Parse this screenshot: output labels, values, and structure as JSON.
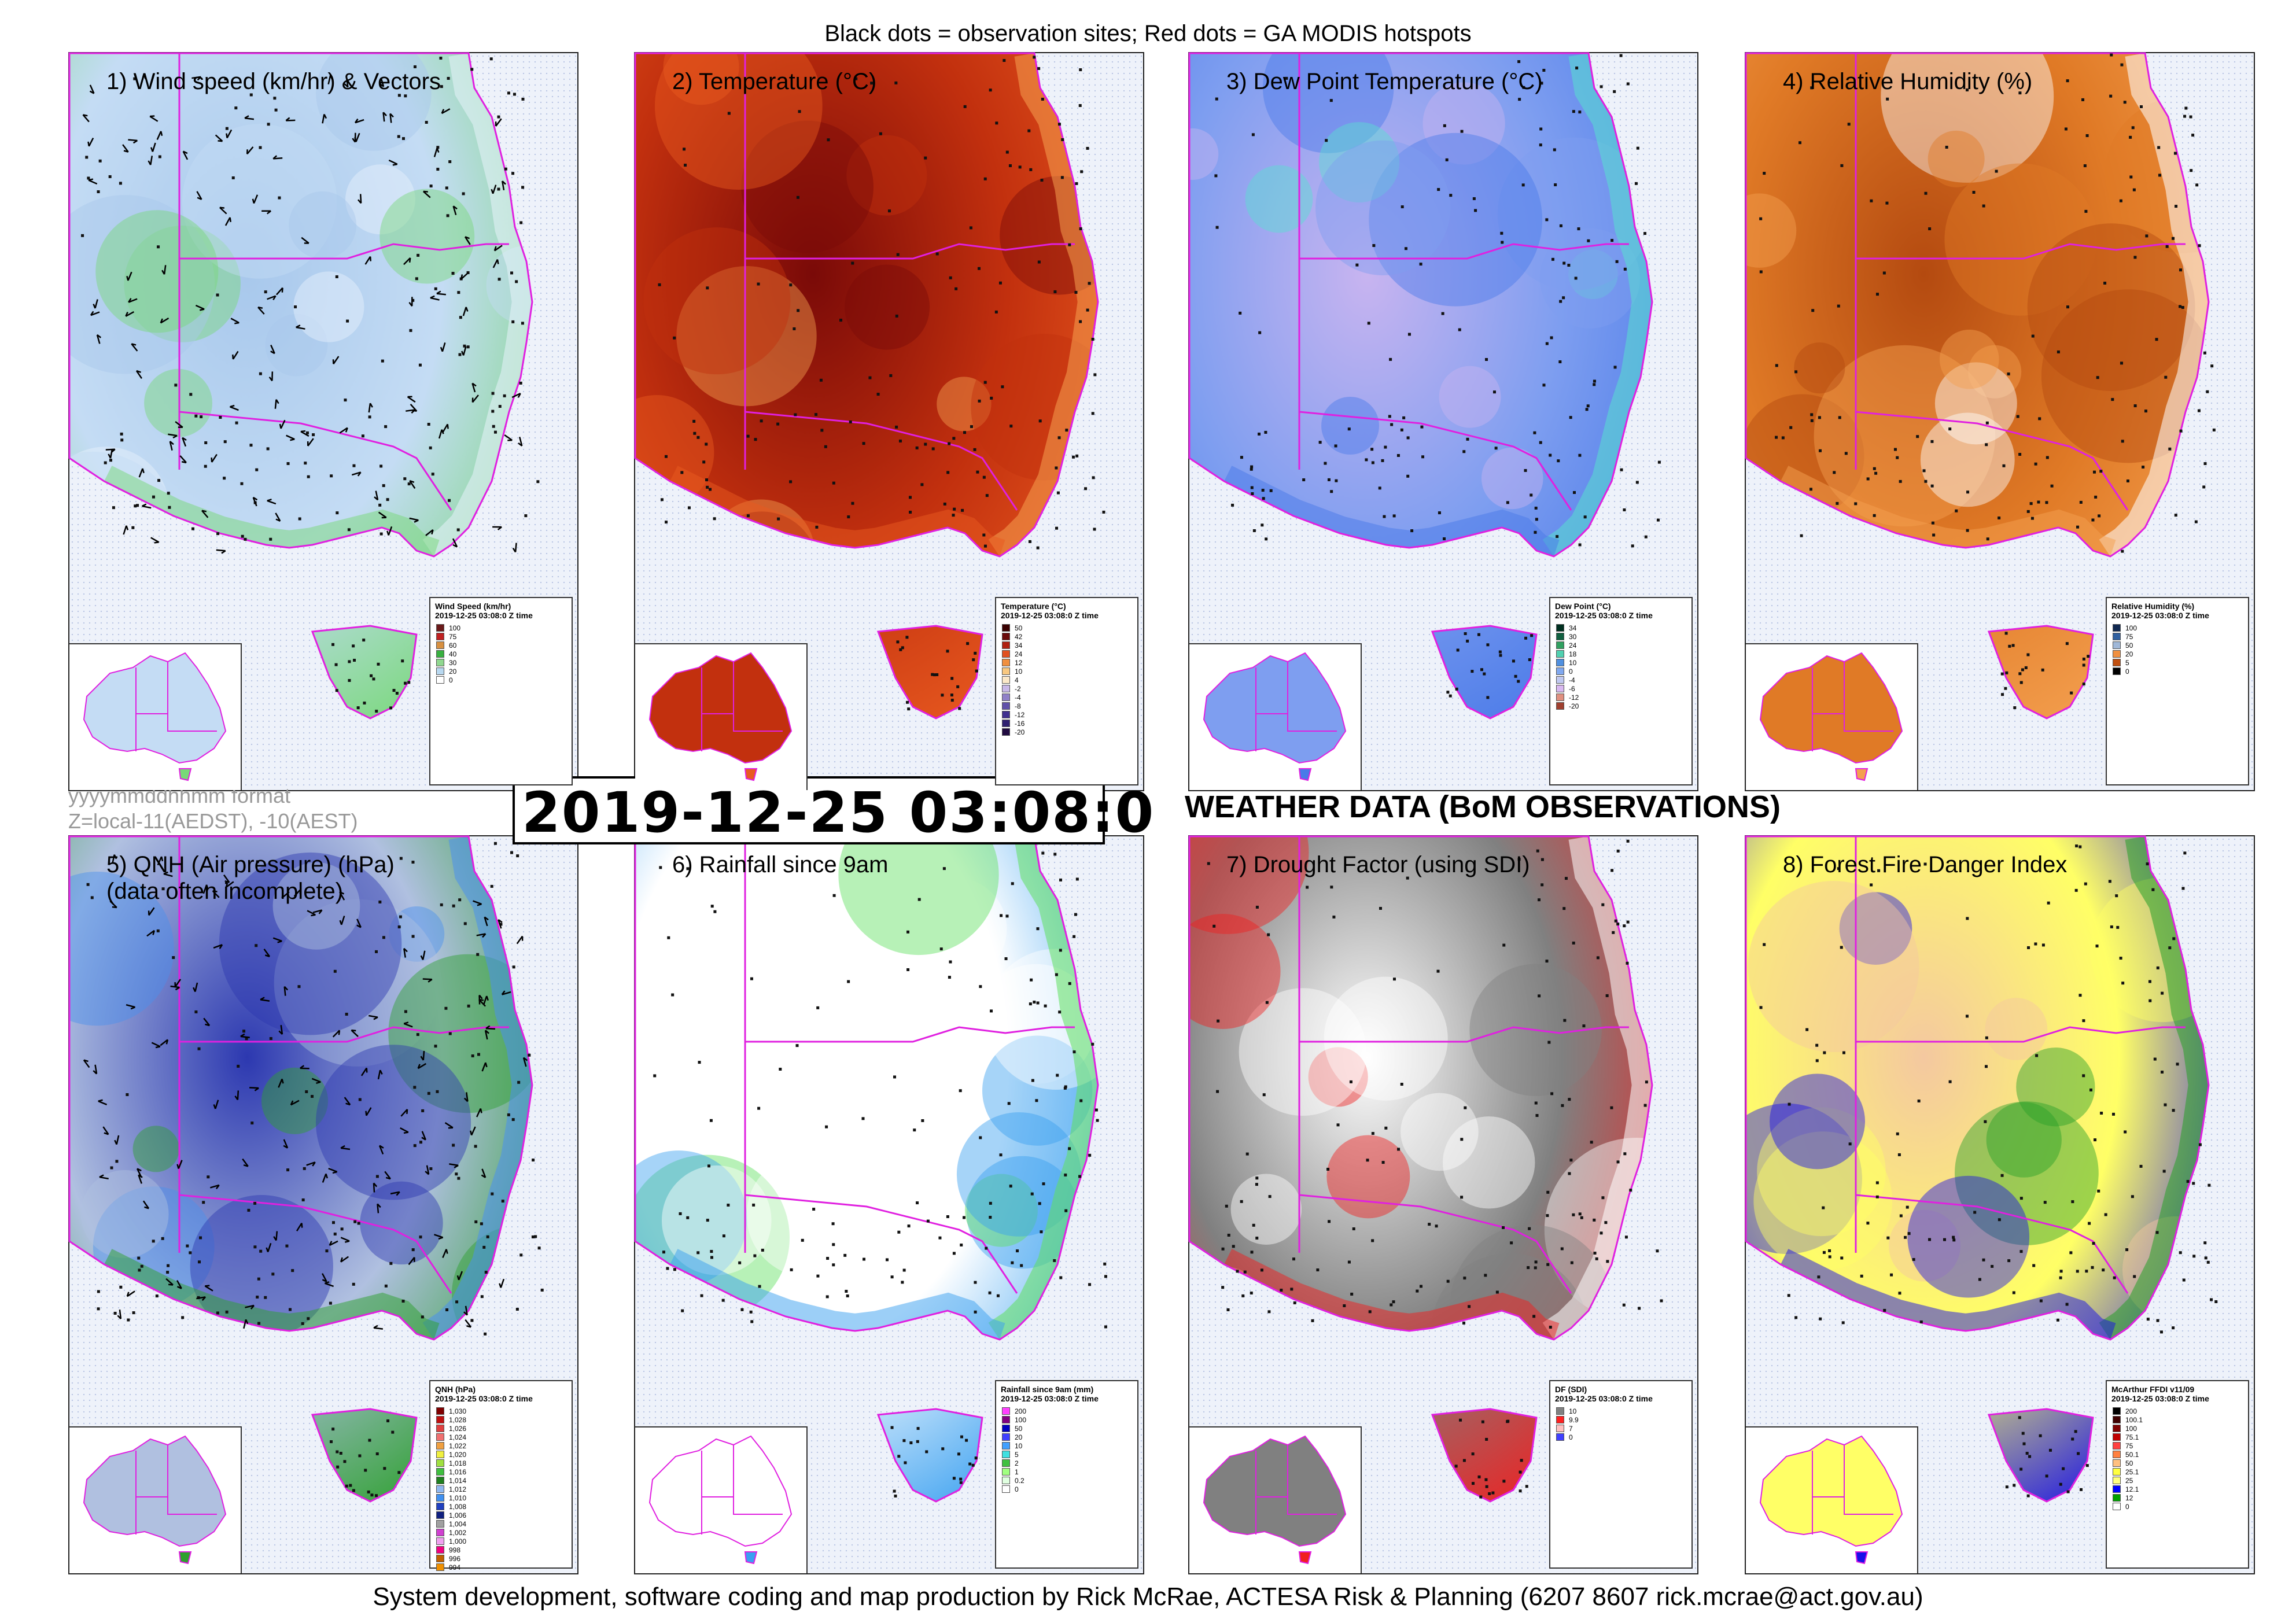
{
  "header": {
    "text": "Black dots = observation sites; Red dots = GA MODIS hotspots"
  },
  "footer": {
    "text": "System development, software coding and map production by Rick McRae, ACTESA Risk & Planning (6207 8607 rick.mcrae@act.gov.au)"
  },
  "timestamp": {
    "value": "2019-12-25 03:08:0",
    "format_line1": "yyyymmddhhmm format",
    "format_line2": "Z=local-11(AEDST), -10(AEST)"
  },
  "section_title": "WEATHER DATA (BoM OBSERVATIONS)",
  "panels": [
    {
      "title": "1) Wind speed (km/hr) & Vectors",
      "legend_title": "Wind Speed (km/hr)",
      "legend_date": "2019-12-25 03:08:0 Z time",
      "legend": [
        {
          "label": "100",
          "color": "#6a1a1a"
        },
        {
          "label": "75",
          "color": "#c02020"
        },
        {
          "label": "60",
          "color": "#d89040"
        },
        {
          "label": "40",
          "color": "#38b040"
        },
        {
          "label": "30",
          "color": "#90d890"
        },
        {
          "label": "20",
          "color": "#b8d8f0"
        },
        {
          "label": "0",
          "color": "#ffffff"
        }
      ],
      "colors": {
        "base": "#c4dcf4",
        "a": "#a8c8ec",
        "b": "#78d878",
        "c": "#e8f2fc"
      }
    },
    {
      "title": "2) Temperature (°C)",
      "legend_title": "Temperature (°C)",
      "legend_date": "2019-12-25 03:08:0 Z time",
      "legend": [
        {
          "label": "50",
          "color": "#3a0000"
        },
        {
          "label": "42",
          "color": "#6a0a0a"
        },
        {
          "label": "34",
          "color": "#b02010"
        },
        {
          "label": "24",
          "color": "#e05020"
        },
        {
          "label": "12",
          "color": "#f09040"
        },
        {
          "label": "10",
          "color": "#f8c880"
        },
        {
          "label": "4",
          "color": "#fbe8c8"
        },
        {
          "label": "-2",
          "color": "#c8b8e8"
        },
        {
          "label": "-4",
          "color": "#9080c8"
        },
        {
          "label": "-8",
          "color": "#6050a8"
        },
        {
          "label": "-12",
          "color": "#403090"
        },
        {
          "label": "-16",
          "color": "#302070"
        },
        {
          "label": "-20",
          "color": "#200a40"
        }
      ],
      "colors": {
        "base": "#c2300e",
        "a": "#7a0a08",
        "b": "#e85a20",
        "c": "#f5a050"
      }
    },
    {
      "title": "3) Dew Point Temperature (°C)",
      "legend_title": "Dew Point (°C)",
      "legend_date": "2019-12-25 03:08:0 Z time",
      "legend": [
        {
          "label": "34",
          "color": "#003020"
        },
        {
          "label": "30",
          "color": "#106040"
        },
        {
          "label": "24",
          "color": "#30a060"
        },
        {
          "label": "18",
          "color": "#50d0b0"
        },
        {
          "label": "10",
          "color": "#5090e0"
        },
        {
          "label": "0",
          "color": "#80a8f0"
        },
        {
          "label": "-4",
          "color": "#c0c8f0"
        },
        {
          "label": "-6",
          "color": "#d8b8f0"
        },
        {
          "label": "-12",
          "color": "#e09080"
        },
        {
          "label": "-20",
          "color": "#a04030"
        }
      ],
      "colors": {
        "base": "#7e9ef0",
        "a": "#c8b4f0",
        "b": "#4a7ae8",
        "c": "#58e0d0"
      }
    },
    {
      "title": "4) Relative Humidity (%)",
      "legend_title": "Relative Humidity (%)",
      "legend_date": "2019-12-25 03:08:0 Z time",
      "legend": [
        {
          "label": "100",
          "color": "#102850"
        },
        {
          "label": "75",
          "color": "#3060a0"
        },
        {
          "label": "50",
          "color": "#a0b8d8"
        },
        {
          "label": "20",
          "color": "#f09040"
        },
        {
          "label": "5",
          "color": "#c05010"
        },
        {
          "label": "0",
          "color": "#000000"
        }
      ],
      "colors": {
        "base": "#e07a26",
        "a": "#b44a10",
        "b": "#f4a050",
        "c": "#ffffff"
      }
    },
    {
      "title": "5) QNH (Air pressure) (hPa)\n(data often incomplete)",
      "legend_title": "QNH (hPa)",
      "legend_date": "2019-12-25 03:08:0 Z time",
      "legend": [
        {
          "label": "1,030",
          "color": "#800000"
        },
        {
          "label": "1,028",
          "color": "#c01010"
        },
        {
          "label": "1,026",
          "color": "#e04040"
        },
        {
          "label": "1,024",
          "color": "#f07070"
        },
        {
          "label": "1,022",
          "color": "#f0a040"
        },
        {
          "label": "1,020",
          "color": "#f0f040"
        },
        {
          "label": "1,018",
          "color": "#a0e040"
        },
        {
          "label": "1,016",
          "color": "#40c040"
        },
        {
          "label": "1,014",
          "color": "#208020"
        },
        {
          "label": "1,012",
          "color": "#90b8f0"
        },
        {
          "label": "1,010",
          "color": "#4090f0"
        },
        {
          "label": "1,008",
          "color": "#2040c0"
        },
        {
          "label": "1,006",
          "color": "#102080"
        },
        {
          "label": "1,004",
          "color": "#a0a0a0"
        },
        {
          "label": "1,002",
          "color": "#d040d0"
        },
        {
          "label": "1,000",
          "color": "#f0a0f0"
        },
        {
          "label": "998",
          "color": "#f00080"
        },
        {
          "label": "996",
          "color": "#c06000"
        },
        {
          "label": "994",
          "color": "#f09000"
        }
      ],
      "colors": {
        "base": "#b0c0e0",
        "a": "#2c38b0",
        "b": "#2ea02e",
        "c": "#4a90ee"
      }
    },
    {
      "title": "6) Rainfall since 9am",
      "legend_title": "Rainfall since 9am (mm)",
      "legend_date": "2019-12-25 03:08:0 Z time",
      "legend": [
        {
          "label": "200",
          "color": "#ff40ff"
        },
        {
          "label": "100",
          "color": "#800080"
        },
        {
          "label": "50",
          "color": "#0000c0"
        },
        {
          "label": "20",
          "color": "#4040ff"
        },
        {
          "label": "10",
          "color": "#40a0ff"
        },
        {
          "label": "5",
          "color": "#40e0e0"
        },
        {
          "label": "2",
          "color": "#40c040"
        },
        {
          "label": "1",
          "color": "#a0ff80"
        },
        {
          "label": "0.2",
          "color": "#e0ffe0"
        },
        {
          "label": "0",
          "color": "#ffffff"
        }
      ],
      "colors": {
        "base": "#ffffff",
        "a": "#ffffff",
        "b": "#3aa0f0",
        "c": "#60e060"
      }
    },
    {
      "title": "7) Drought Factor (using SDI)",
      "legend_title": "DF (SDI)",
      "legend_date": "2019-12-25 03:08:0 Z time",
      "legend": [
        {
          "label": "10",
          "color": "#808080"
        },
        {
          "label": "9.9",
          "color": "#ff2020"
        },
        {
          "label": "7",
          "color": "#ffc0c0"
        },
        {
          "label": "0",
          "color": "#4040ff"
        }
      ],
      "colors": {
        "base": "#808080",
        "a": "#ffffff",
        "b": "#f02020",
        "c": "#ffffff"
      }
    },
    {
      "title": "8) Forest Fire Danger Index",
      "legend_title": "McArthur FFDI v11/09",
      "legend_date": "2019-12-25 03:08:0 Z time",
      "legend": [
        {
          "label": "200",
          "color": "#000000"
        },
        {
          "label": "100.1",
          "color": "#400000"
        },
        {
          "label": "100",
          "color": "#800000"
        },
        {
          "label": "75.1",
          "color": "#c00000"
        },
        {
          "label": "75",
          "color": "#ff4040"
        },
        {
          "label": "50.1",
          "color": "#ff8040"
        },
        {
          "label": "50",
          "color": "#ffc080"
        },
        {
          "label": "25.1",
          "color": "#ffff40"
        },
        {
          "label": "25",
          "color": "#ffff80"
        },
        {
          "label": "12.1",
          "color": "#0000ff"
        },
        {
          "label": "12",
          "color": "#00a000"
        },
        {
          "label": "0",
          "color": "#ffffff"
        }
      ],
      "colors": {
        "base": "#ffff66",
        "a": "#f4c8a0",
        "b": "#1810e8",
        "c": "#28a028"
      }
    }
  ]
}
